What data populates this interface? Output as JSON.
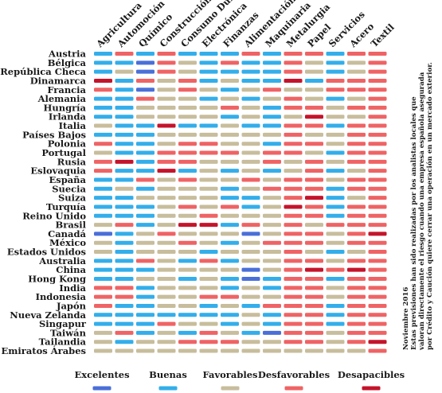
{
  "chart_data": {
    "type": "heatmap",
    "title": "",
    "sectors": [
      "Agricultura",
      "Automoción",
      "Químico",
      "Construcción",
      "Consumo Duradero",
      "Electrónica",
      "Finanzas",
      "Alimentación",
      "Maquinaria",
      "Metalurgia",
      "Papel",
      "Servicios",
      "Acero",
      "Textil"
    ],
    "countries": [
      "Austria",
      "Bélgica",
      "República Checa",
      "Dinamarca",
      "Francia",
      "Alemania",
      "Hungría",
      "Irlanda",
      "Italia",
      "Países Bajos",
      "Polonia",
      "Portugal",
      "Rusia",
      "Eslovaquia",
      "España",
      "Suecia",
      "Suiza",
      "Turquía",
      "Reino Unido",
      "Brasil",
      "Canadá",
      "México",
      "Estados Unidos",
      "Australia",
      "China",
      "Hong Kong",
      "India",
      "Indonesia",
      "Japón",
      "Nueva Zelanda",
      "Singapur",
      "Taiwán",
      "Tailandia",
      "Emiratos Árabes"
    ],
    "levels": [
      "Excelentes",
      "Buenas",
      "Favorables",
      "Desfavorables",
      "Desapacibles"
    ],
    "level_colors": [
      "#4a6fd8",
      "#33aeea",
      "#c8bd9c",
      "#ef6364",
      "#c4142b"
    ],
    "ratings": [
      "BDBDBBBDBDDBDD",
      "BBADCBDBBDCBCD",
      "BCADCBBBBDCBCD",
      "EBDCDBCBBEBDDD",
      "DBACDCBCDCCDDD",
      "BBDCCBCBCDCBCD",
      "BBCCCCDCBDDCDD",
      "BBCCCCBCBCECCD",
      "CBBEBBCBBDDBDD",
      "BBBCCCCCCDCCDD",
      "DBBCDDCCBDDCDD",
      "CBBDDDDCDDCBDD",
      "DEBDDCCCDCDCDD",
      "DBBEBCBCBCDBCD",
      "BBDCDCCDCDDCDD",
      "BCBCCCBCDDDBDD",
      "BBCCCCBBCDEBCD",
      "BBBCDCDBCEDBDD",
      "BBBCCDCCCDDBDD",
      "CDBCEEBDCDCDDD",
      "ABCDCCCACDDCDE",
      "CBCCDCBCDDDCDD",
      "CBCCCBCCCDCBCD",
      "BBDCBDBCCDDCDD",
      "BBBCCCCACDEDED",
      "BBCCBCBABDDBDD",
      "DDBCCCBCBDDCDD",
      "DDBCCDDCCDDCDD",
      "DBBCCBCBDDDBDD",
      "BBBBBBBCBDDBDD",
      "BBBDCCBCBDDBDD",
      "CDBCBDCBADDCDD",
      "CBCCDDDCCDDCDE",
      "CCCCCCCCCCCCCD"
    ],
    "legend_position": "bottom",
    "note": [
      "Noviembre 2016",
      "Estas previsiones han sido realizadas por los analistas locales que",
      "valoran directamente el riesgo cuando una empresa española asegurada",
      "por Crédito y Caución quiere cerrar una operación en un mercado exterior."
    ]
  }
}
